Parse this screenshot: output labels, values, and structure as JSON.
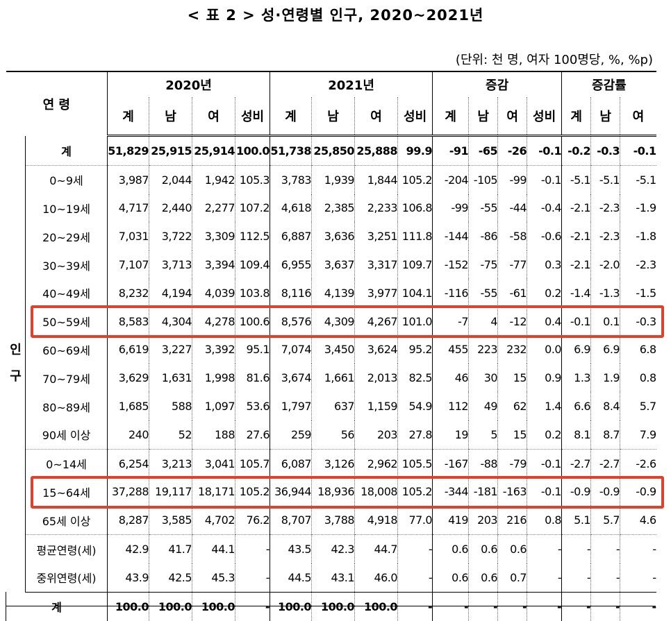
{
  "title": "< 표 2 > 성·연령별 인구, 2020~2021년",
  "unit": "(단위: 천 명, 여자 100명당, %, %p)",
  "header": {
    "age_label": "연 령",
    "groups": [
      "2020년",
      "2021년",
      "증감",
      "증감률"
    ],
    "sub": [
      "계",
      "남",
      "여",
      "성비",
      "계",
      "남",
      "여",
      "성비",
      "계",
      "남",
      "여",
      "성비",
      "계",
      "남",
      "여"
    ]
  },
  "side_label": "인\n구",
  "rows": [
    {
      "label": "계",
      "values": [
        "51,829",
        "25,915",
        "25,914",
        "100.0",
        "51,738",
        "25,850",
        "25,888",
        "99.9",
        "-91",
        "-65",
        "-26",
        "-0.1",
        "-0.2",
        "-0.3",
        "-0.1"
      ]
    },
    {
      "label": "0~9세",
      "values": [
        "3,987",
        "2,044",
        "1,942",
        "105.3",
        "3,783",
        "1,939",
        "1,844",
        "105.2",
        "-204",
        "-105",
        "-99",
        "-0.1",
        "-5.1",
        "-5.1",
        "-5.1"
      ]
    },
    {
      "label": "10~19세",
      "values": [
        "4,717",
        "2,440",
        "2,277",
        "107.2",
        "4,618",
        "2,385",
        "2,233",
        "106.8",
        "-99",
        "-55",
        "-44",
        "-0.4",
        "-2.1",
        "-2.3",
        "-1.9"
      ]
    },
    {
      "label": "20~29세",
      "values": [
        "7,031",
        "3,722",
        "3,309",
        "112.5",
        "6,887",
        "3,636",
        "3,251",
        "111.8",
        "-144",
        "-86",
        "-58",
        "-0.6",
        "-2.1",
        "-2.3",
        "-1.8"
      ]
    },
    {
      "label": "30~39세",
      "values": [
        "7,107",
        "3,713",
        "3,394",
        "109.4",
        "6,955",
        "3,637",
        "3,317",
        "109.7",
        "-152",
        "-75",
        "-77",
        "0.3",
        "-2.1",
        "-2.0",
        "-2.3"
      ]
    },
    {
      "label": "40~49세",
      "values": [
        "8,232",
        "4,194",
        "4,039",
        "103.8",
        "8,116",
        "4,139",
        "3,977",
        "104.1",
        "-116",
        "-55",
        "-61",
        "0.2",
        "-1.4",
        "-1.3",
        "-1.5"
      ]
    },
    {
      "label": "50~59세",
      "values": [
        "8,583",
        "4,304",
        "4,278",
        "100.6",
        "8,576",
        "4,309",
        "4,267",
        "101.0",
        "-7",
        "4",
        "-12",
        "0.4",
        "-0.1",
        "0.1",
        "-0.3"
      ]
    },
    {
      "label": "60~69세",
      "values": [
        "6,619",
        "3,227",
        "3,392",
        "95.1",
        "7,074",
        "3,450",
        "3,624",
        "95.2",
        "455",
        "223",
        "232",
        "0.0",
        "6.9",
        "6.9",
        "6.8"
      ]
    },
    {
      "label": "70~79세",
      "values": [
        "3,629",
        "1,631",
        "1,998",
        "81.6",
        "3,674",
        "1,661",
        "2,013",
        "82.5",
        "46",
        "30",
        "15",
        "0.9",
        "1.3",
        "1.9",
        "0.8"
      ]
    },
    {
      "label": "80~89세",
      "values": [
        "1,685",
        "588",
        "1,097",
        "53.6",
        "1,797",
        "637",
        "1,159",
        "54.9",
        "112",
        "49",
        "62",
        "1.4",
        "6.6",
        "8.4",
        "5.7"
      ]
    },
    {
      "label": "90세 이상",
      "values": [
        "240",
        "52",
        "188",
        "27.6",
        "259",
        "56",
        "203",
        "27.8",
        "19",
        "5",
        "15",
        "0.2",
        "8.1",
        "8.7",
        "7.9"
      ]
    },
    {
      "label": "0~14세",
      "values": [
        "6,254",
        "3,213",
        "3,041",
        "105.7",
        "6,087",
        "3,126",
        "2,962",
        "105.5",
        "-167",
        "-88",
        "-79",
        "-0.1",
        "-2.7",
        "-2.7",
        "-2.6"
      ]
    },
    {
      "label": "15~64세",
      "values": [
        "37,288",
        "19,117",
        "18,171",
        "105.2",
        "36,944",
        "18,936",
        "18,008",
        "105.2",
        "-344",
        "-181",
        "-163",
        "-0.1",
        "-0.9",
        "-0.9",
        "-0.9"
      ]
    },
    {
      "label": "65세 이상",
      "values": [
        "8,287",
        "3,585",
        "4,702",
        "76.2",
        "8,707",
        "3,788",
        "4,918",
        "77.0",
        "419",
        "203",
        "216",
        "0.8",
        "5.1",
        "5.7",
        "4.6"
      ]
    },
    {
      "label": "평균연령(세)",
      "values": [
        "42.9",
        "41.7",
        "44.1",
        "-",
        "43.5",
        "42.3",
        "44.7",
        "-",
        "0.6",
        "0.6",
        "0.6",
        "-",
        "-",
        "-",
        "-"
      ]
    },
    {
      "label": "중위연령(세)",
      "values": [
        "43.9",
        "42.5",
        "45.3",
        "-",
        "44.5",
        "43.1",
        "46.0",
        "-",
        "0.6",
        "0.6",
        "0.7",
        "-",
        "-",
        "-",
        "-"
      ]
    },
    {
      "label": "계",
      "values": [
        "100.0",
        "100.0",
        "100.0",
        "-",
        "100.0",
        "100.0",
        "100.0",
        "-",
        "-",
        "-",
        "-",
        "-",
        "-",
        "-",
        "-"
      ]
    }
  ],
  "highlight_color": "#e0412b"
}
